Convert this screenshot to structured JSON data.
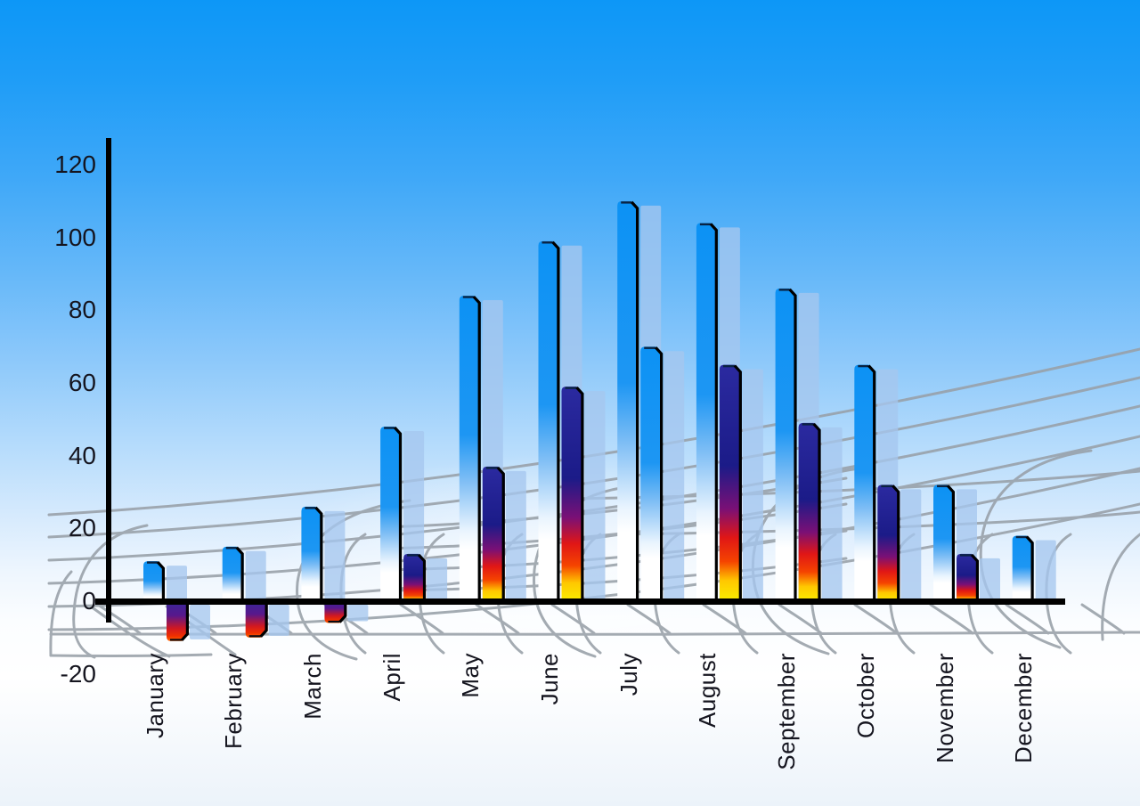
{
  "chart_data": {
    "type": "bar",
    "title": "",
    "categories": [
      "January",
      "February",
      "March",
      "April",
      "May",
      "June",
      "July",
      "August",
      "September",
      "October",
      "November",
      "December"
    ],
    "series": [
      {
        "name": "primary-blue-bars",
        "values": [
          11,
          15,
          26,
          48,
          84,
          99,
          110,
          104,
          86,
          65,
          32,
          18
        ]
      },
      {
        "name": "secondary-accent-bars",
        "values": [
          -11,
          -10,
          -6,
          13,
          37,
          59,
          70,
          65,
          49,
          32,
          13,
          null
        ]
      }
    ],
    "secondary_bar_styles": [
      "negative",
      "negative",
      "negative",
      "rainbow",
      "rainbow",
      "rainbow",
      "blue",
      "rainbow",
      "rainbow",
      "rainbow",
      "rainbow",
      null
    ],
    "y_ticks": [
      120,
      100,
      80,
      60,
      40,
      20,
      0,
      -20
    ],
    "ylim": [
      -20,
      120
    ],
    "xlabel": "",
    "ylabel": "",
    "legend": "none",
    "grid": "curved-perspective-mesh"
  },
  "axis": {
    "y_tick_labels": [
      "120",
      "100",
      "80",
      "60",
      "40",
      "20",
      "0",
      "-20"
    ]
  },
  "colors": {
    "sky_top": "#0d97f7",
    "sky_bottom": "#ecf3fa",
    "bar_blue": "#0d93f4",
    "bar_navy": "#1b1b88",
    "bar_red": "#e01616",
    "bar_yellow": "#f8f400",
    "bar_negative_bottom": "#ff6600",
    "bar_shadow": "rgba(165,198,238,0.78)",
    "mesh_gray": "#98a0a8",
    "axis_black": "#000000",
    "label_text": "#15151f"
  }
}
